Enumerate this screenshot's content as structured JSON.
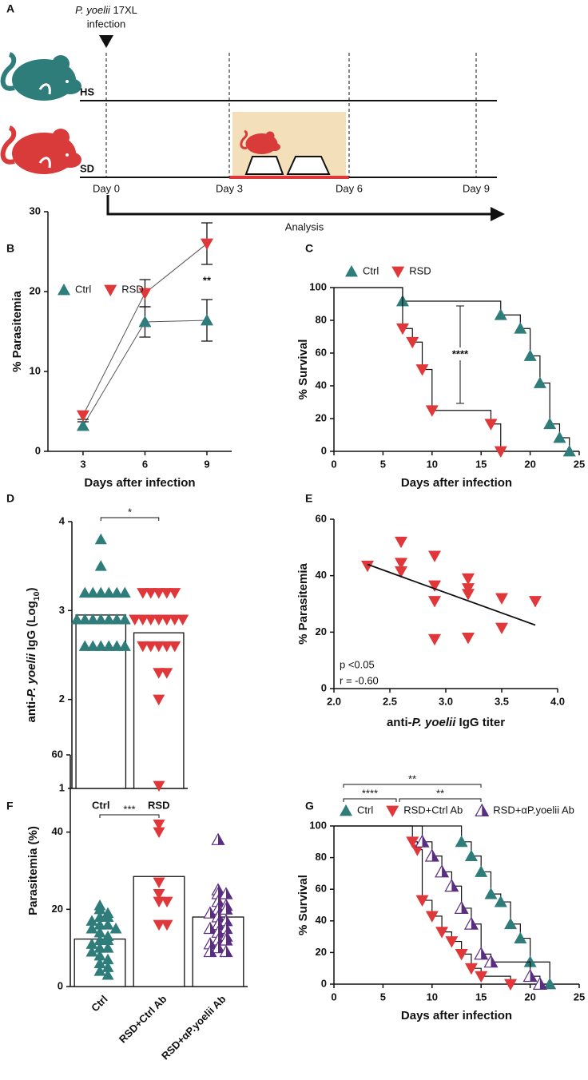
{
  "schematic": {
    "panel": "A",
    "infection": [
      {
        "text": "P. yoelii",
        "style": "italic"
      },
      " 17XL"
    ],
    "infection_line2": "infection",
    "groups": [
      "HS",
      "SD"
    ],
    "days": [
      "Day 0",
      "Day 3",
      "Day 6",
      "Day 9"
    ],
    "analysis": "Analysis"
  },
  "chart_data": [
    {
      "panel": "B",
      "type": "line",
      "ylabel": "% Parasitemia",
      "xlabel": "Days after infection",
      "x": [
        3,
        6,
        9
      ],
      "xlim": [
        1.3,
        10.2
      ],
      "xticks": [
        3,
        6,
        9
      ],
      "ylim": [
        0,
        30
      ],
      "yticks": [
        0,
        10,
        20,
        30
      ],
      "series": [
        {
          "name": "Ctrl",
          "color": "#2e7d7a",
          "marker": "triangle-up",
          "values": [
            3.2,
            16.2,
            16.4
          ],
          "errors": [
            0.5,
            1.9,
            2.6
          ]
        },
        {
          "name": "RSD",
          "color": "#e0383a",
          "marker": "triangle-down",
          "values": [
            4.5,
            19.8,
            26.0
          ],
          "errors": [
            0.5,
            1.7,
            2.6
          ]
        }
      ],
      "annotations": [
        {
          "text": "**",
          "x": 9
        }
      ]
    },
    {
      "panel": "C",
      "type": "survival",
      "ylabel": "% Survival",
      "xlabel": "Days after infection",
      "xlim": [
        0,
        25
      ],
      "xticks": [
        0,
        5,
        10,
        15,
        20,
        25
      ],
      "ylim": [
        0,
        100
      ],
      "yticks": [
        0,
        20,
        40,
        60,
        80,
        100
      ],
      "series": [
        {
          "name": "Ctrl",
          "color": "#2e7d7a",
          "marker": "triangle-up",
          "x": [
            0,
            7,
            17,
            19,
            20,
            21,
            22,
            23,
            24
          ],
          "values": [
            100,
            91.7,
            83.3,
            75,
            58.3,
            41.7,
            16.7,
            8.3,
            0
          ]
        },
        {
          "name": "RSD",
          "color": "#e0383a",
          "marker": "triangle-down",
          "x": [
            0,
            7,
            8,
            9,
            10,
            16,
            17
          ],
          "values": [
            100,
            75,
            66.7,
            50,
            25,
            16.7,
            0
          ]
        }
      ],
      "annotations": [
        "****"
      ]
    },
    {
      "panel": "D",
      "type": "bar-scatter",
      "ylabel": [
        "anti-",
        {
          "text": "P. yoelii",
          "style": "italic"
        },
        " IgG (Log",
        {
          "text": "10",
          "style": "sub"
        },
        ")"
      ],
      "categories": [
        "Ctrl",
        "RSD"
      ],
      "values": [
        2.95,
        2.75
      ],
      "colors": [
        "#2e7d7a",
        "#e0383a"
      ],
      "markers": [
        "triangle-up",
        "triangle-down"
      ],
      "points": [
        [
          3.8,
          3.5,
          3.2,
          3.2,
          3.2,
          3.2,
          3.2,
          3.2,
          2.9,
          2.9,
          2.9,
          2.9,
          2.9,
          2.9,
          2.9,
          2.6,
          2.6,
          2.6,
          2.6,
          2.6,
          2.6
        ],
        [
          3.2,
          3.2,
          3.2,
          3.2,
          3.2,
          2.9,
          2.9,
          2.9,
          2.9,
          2.9,
          2.9,
          2.9,
          2.6,
          2.6,
          2.6,
          2.6,
          2.6,
          2.3,
          2.3,
          2.0
        ]
      ],
      "ylim": [
        1,
        4
      ],
      "yticks": [
        1,
        2,
        3,
        4
      ],
      "annotations": [
        "*"
      ]
    },
    {
      "panel": "E",
      "type": "scatter",
      "ylabel": "% Parasitemia",
      "xlabel": [
        "anti-",
        {
          "text": "P. yoelii",
          "style": "italic"
        },
        " IgG titer"
      ],
      "color": "#e0383a",
      "marker": "triangle-down",
      "x": [
        2.3,
        2.6,
        2.6,
        2.6,
        2.9,
        2.9,
        2.9,
        2.9,
        3.2,
        3.2,
        3.2,
        3.2,
        3.5,
        3.5,
        3.8
      ],
      "values": [
        43.5,
        52,
        44.5,
        41.5,
        47,
        36.5,
        31,
        17.5,
        39,
        35.5,
        33.5,
        18,
        32,
        21.5,
        31
      ],
      "fit": {
        "x": [
          2.3,
          3.8
        ],
        "values": [
          44,
          22.5
        ]
      },
      "xlim": [
        2,
        4
      ],
      "xticks": [
        {
          "value": 2,
          "label": "2.0"
        },
        2.5,
        {
          "value": 3,
          "label": "3.0"
        },
        3.5,
        {
          "value": 4,
          "label": "4.0"
        }
      ],
      "ylim": [
        0,
        60
      ],
      "yticks": [
        0,
        20,
        40,
        60
      ],
      "stats": [
        "p <0.05",
        "r = -0.60"
      ]
    },
    {
      "panel": "F",
      "type": "bar-scatter",
      "ylabel": "Parasitemia (%)",
      "categories": [
        "Ctrl",
        "RSD+Ctrl Ab",
        "RSD+αP.yoelii Ab"
      ],
      "values": [
        12.3,
        28.5,
        18
      ],
      "colors": [
        "#2e7d7a",
        "#e0383a",
        "#5a2d82"
      ],
      "markers": [
        "triangle-up",
        "triangle-down",
        "triangle-half"
      ],
      "points": [
        [
          21,
          20,
          19,
          18,
          18,
          17,
          16,
          16,
          15,
          15,
          14,
          13,
          12,
          12,
          11,
          10,
          10,
          9,
          8,
          7,
          6,
          5,
          4,
          3
        ],
        [
          52,
          42,
          40,
          27,
          24,
          22,
          22,
          16,
          16
        ],
        [
          38,
          25,
          24,
          24,
          22,
          21,
          20,
          20,
          19,
          18,
          17,
          16,
          15,
          15,
          14,
          13,
          12,
          12,
          11,
          10,
          9,
          9
        ]
      ],
      "ylim": [
        0,
        60
      ],
      "yticks": [
        0,
        20,
        40,
        60
      ],
      "annotations": [
        "***"
      ]
    },
    {
      "panel": "G",
      "type": "survival",
      "ylabel": "% Survival",
      "xlabel": "Days after infection",
      "xlim": [
        0,
        25
      ],
      "xticks": [
        0,
        5,
        10,
        15,
        20,
        25
      ],
      "ylim": [
        0,
        100
      ],
      "yticks": [
        0,
        20,
        40,
        60,
        80,
        100
      ],
      "series": [
        {
          "name": "Ctrl",
          "color": "#2e7d7a",
          "marker": "triangle-up",
          "x": [
            0,
            13,
            14,
            15,
            16,
            17,
            18,
            19,
            20,
            22
          ],
          "values": [
            100,
            90,
            81,
            71,
            57,
            52,
            38,
            29,
            14,
            0
          ]
        },
        {
          "name": "RSD+Ctrl Ab",
          "color": "#e0383a",
          "marker": "triangle-down",
          "x": [
            0,
            8,
            8.5,
            9,
            10,
            11,
            12,
            13,
            14,
            15,
            18
          ],
          "values": [
            100,
            90,
            85,
            53,
            43,
            33,
            27,
            19,
            10,
            5,
            0
          ]
        },
        {
          "name": "RSD+αP.yoelii Ab",
          "color": "#5a2d82",
          "marker": "triangle-half",
          "x": [
            0,
            9,
            10,
            11,
            12,
            13,
            14,
            15,
            16,
            20,
            21
          ],
          "values": [
            100,
            90,
            81,
            71,
            62,
            48,
            38,
            19,
            14,
            5,
            0
          ]
        }
      ],
      "annotations": [
        "**",
        "****",
        "**"
      ]
    }
  ]
}
